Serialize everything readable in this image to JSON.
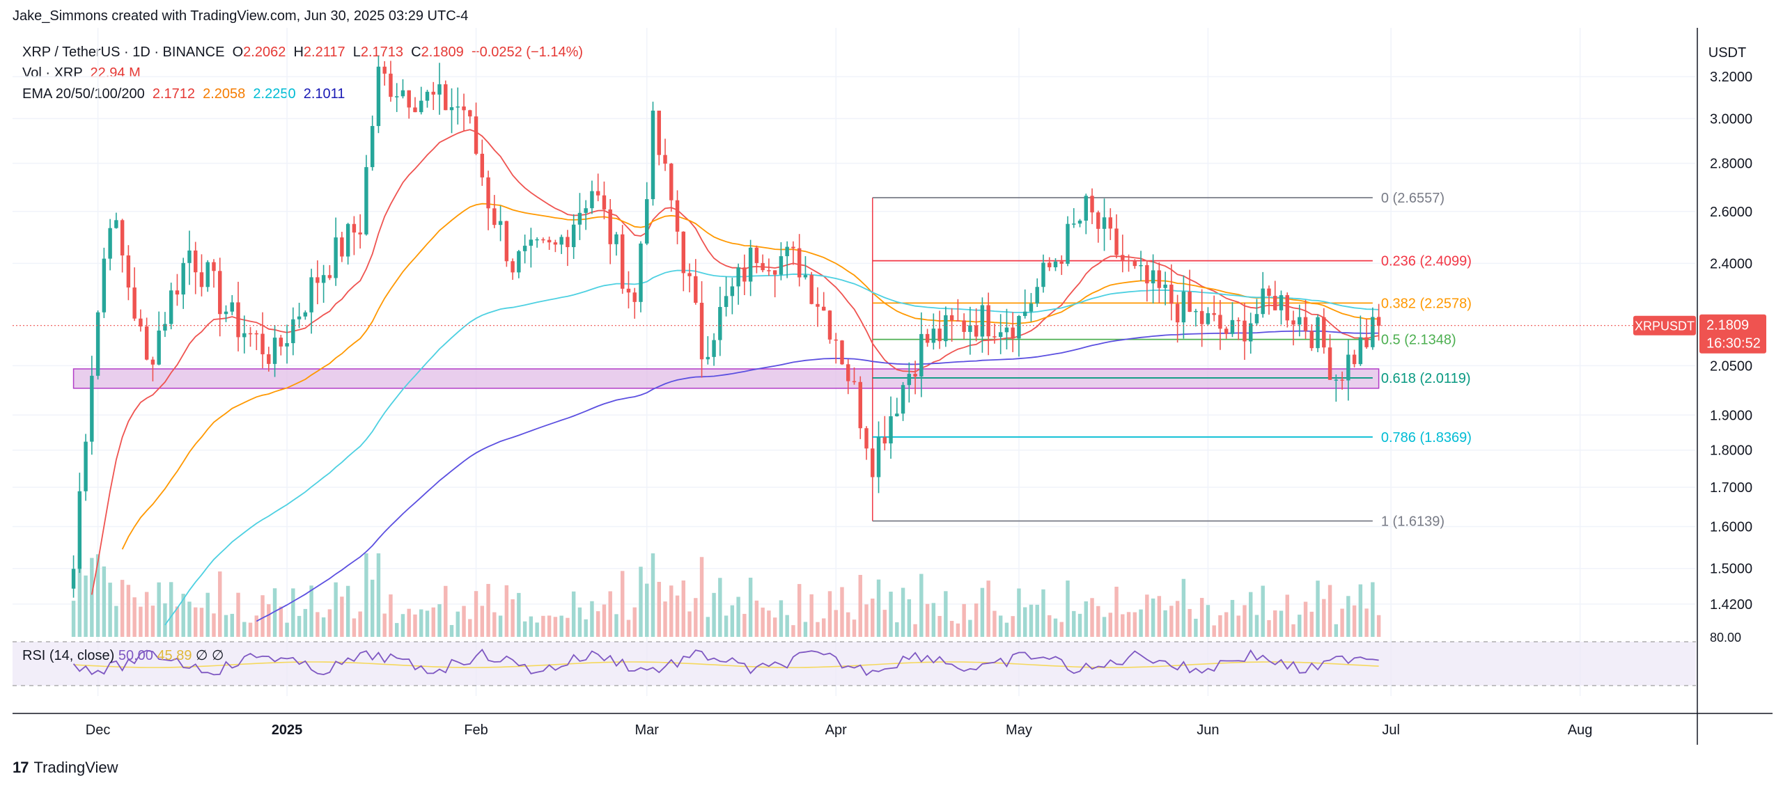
{
  "header": {
    "attribution": "Jake_Simmons created with TradingView.com, Jun 30, 2025 03:29 UTC-4"
  },
  "legend": {
    "symbol": "XRP / TetherUS · 1D · BINANCE",
    "ohlc": {
      "o_label": "O",
      "o": "2.2062",
      "h_label": "H",
      "h": "2.2117",
      "l_label": "L",
      "l": "2.1713",
      "c_label": "C",
      "c": "2.1809",
      "change": "−0.0252 (−1.14%)"
    },
    "vol_label": "Vol · XRP",
    "vol_value": "22.94 M",
    "ema_label": "EMA 20/50/100/200",
    "ema_values": [
      "2.1712",
      "2.2058",
      "2.2250",
      "2.1011"
    ]
  },
  "colors": {
    "up": "#26a69a",
    "down": "#ef5350",
    "ema20": "#ef5350",
    "ema50": "#ff9800",
    "ema100": "#4dd0e1",
    "ema200": "#5b4fe0",
    "zone": "#e1bee7",
    "zone_border": "#b23cc7",
    "rsi": "#7e57c2",
    "rsi_ma": "#f5d85c"
  },
  "chart_data": {
    "type": "candlestick",
    "axis_currency": "USDT",
    "y_ticks": [
      "3.2000",
      "3.0000",
      "2.8000",
      "2.6000",
      "2.4000",
      "2.0500",
      "1.9000",
      "1.8000",
      "1.7000",
      "1.6000",
      "1.5000",
      "1.4200"
    ],
    "y_tick_values": [
      3.2,
      3.0,
      2.8,
      2.6,
      2.4,
      2.05,
      1.9,
      1.8,
      1.7,
      1.6,
      1.5,
      1.42
    ],
    "x_ticks": [
      "Dec",
      "2025",
      "Feb",
      "Mar",
      "Apr",
      "May",
      "Jun",
      "Jul",
      "Aug"
    ],
    "x_tick_dates": [
      "2024-12-01",
      "2025-01-01",
      "2025-02-01",
      "2025-03-01",
      "2025-04-01",
      "2025-05-01",
      "2025-06-01",
      "2025-07-01",
      "2025-08-01"
    ],
    "date_range": [
      "2024-11-17",
      "2025-08-20"
    ],
    "price_range": [
      1.35,
      3.45
    ],
    "last_price": {
      "label": "XRPUSDT",
      "value": "2.1809",
      "countdown": "16:30:52",
      "price": 2.1809
    },
    "fib_levels": [
      {
        "label": "0 (2.6557)",
        "value": 2.6557,
        "color": "#787b86"
      },
      {
        "label": "0.236 (2.4099)",
        "value": 2.4099,
        "color": "#f23645"
      },
      {
        "label": "0.382 (2.2578)",
        "value": 2.2578,
        "color": "#ff9800"
      },
      {
        "label": "0.5 (2.1348)",
        "value": 2.1348,
        "color": "#4caf50"
      },
      {
        "label": "0.618 (2.0119)",
        "value": 2.0119,
        "color": "#089981"
      },
      {
        "label": "0.786 (1.8369)",
        "value": 1.8369,
        "color": "#00bcd4"
      },
      {
        "label": "1 (1.6139)",
        "value": 1.6139,
        "color": "#787b86"
      }
    ],
    "fib_start_date": "2025-04-07",
    "fib_end_date": "2025-06-28",
    "zone": {
      "from_date": "2024-11-27",
      "to_date": "2025-06-29",
      "low": 1.98,
      "high": 2.04
    },
    "rsi": {
      "label": "RSI (14, close)",
      "values": [
        "50.00",
        "45.89",
        "∅",
        "∅"
      ],
      "upper": "80.00"
    },
    "anchors": [
      {
        "date": "2024-11-27",
        "price": 1.5
      },
      {
        "date": "2024-12-03",
        "price": 2.6
      },
      {
        "date": "2024-12-09",
        "price": 2.05
      },
      {
        "date": "2024-12-16",
        "price": 2.45
      },
      {
        "date": "2024-12-23",
        "price": 2.2
      },
      {
        "date": "2024-12-30",
        "price": 2.08
      },
      {
        "date": "2025-01-06",
        "price": 2.35
      },
      {
        "date": "2025-01-13",
        "price": 2.55
      },
      {
        "date": "2025-01-16",
        "price": 3.2
      },
      {
        "date": "2025-01-23",
        "price": 3.1
      },
      {
        "date": "2025-01-30",
        "price": 3.05
      },
      {
        "date": "2025-02-03",
        "price": 2.65
      },
      {
        "date": "2025-02-07",
        "price": 2.4
      },
      {
        "date": "2025-02-14",
        "price": 2.45
      },
      {
        "date": "2025-02-20",
        "price": 2.7
      },
      {
        "date": "2025-02-27",
        "price": 2.25
      },
      {
        "date": "2025-03-02",
        "price": 2.95
      },
      {
        "date": "2025-03-10",
        "price": 2.1
      },
      {
        "date": "2025-03-19",
        "price": 2.45
      },
      {
        "date": "2025-03-26",
        "price": 2.4
      },
      {
        "date": "2025-04-01",
        "price": 2.15
      },
      {
        "date": "2025-04-07",
        "price": 1.78
      },
      {
        "date": "2025-04-15",
        "price": 2.12
      },
      {
        "date": "2025-04-23",
        "price": 2.2
      },
      {
        "date": "2025-05-01",
        "price": 2.2
      },
      {
        "date": "2025-05-12",
        "price": 2.6
      },
      {
        "date": "2025-05-20",
        "price": 2.35
      },
      {
        "date": "2025-05-29",
        "price": 2.22
      },
      {
        "date": "2025-06-05",
        "price": 2.15
      },
      {
        "date": "2025-06-12",
        "price": 2.28
      },
      {
        "date": "2025-06-19",
        "price": 2.15
      },
      {
        "date": "2025-06-22",
        "price": 2.02
      },
      {
        "date": "2025-06-29",
        "price": 2.18
      }
    ]
  },
  "footer": {
    "brand": "TradingView"
  }
}
